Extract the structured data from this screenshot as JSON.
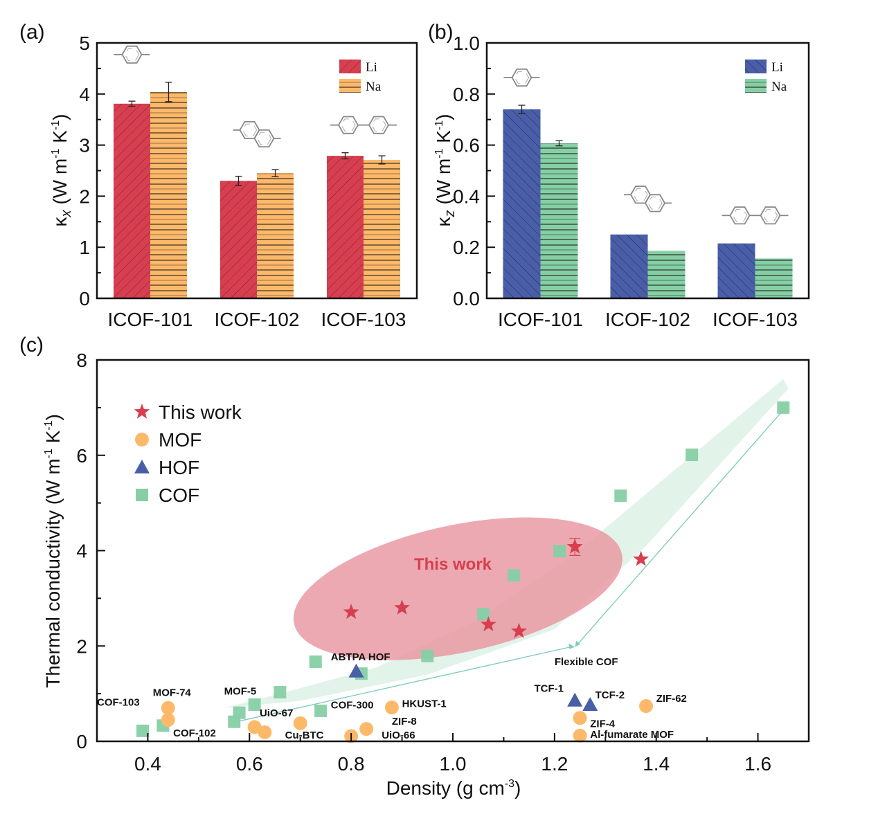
{
  "chart_data": [
    {
      "id": "a",
      "panel_label": "(a)",
      "type": "bar",
      "categories": [
        "ICOF-101",
        "ICOF-102",
        "ICOF-103"
      ],
      "series": [
        {
          "name": "Li",
          "color": "#d63f4f",
          "hatch": "diagonal",
          "values": [
            3.81,
            2.3,
            2.79
          ],
          "errors": [
            0.05,
            0.09,
            0.06
          ]
        },
        {
          "name": "Na",
          "color": "#fdb96a",
          "hatch": "horizontal",
          "values": [
            4.04,
            2.45,
            2.71
          ],
          "errors": [
            0.19,
            0.07,
            0.08
          ]
        }
      ],
      "ylabel": "κx (W m-1 K-1)",
      "ylabel_parts": {
        "kappa": "κ",
        "sub": "x",
        "unit": " (W m",
        "exp1": "-1",
        "mid": " K",
        "exp2": "-1",
        "close": ")"
      },
      "ylim": [
        0,
        5
      ],
      "yticks": [
        "0",
        "1",
        "2",
        "3",
        "4",
        "5"
      ],
      "ytick_values": [
        0,
        1,
        2,
        3,
        4,
        5
      ],
      "legend": [
        "Li",
        "Na"
      ],
      "legend_position": "top-right",
      "linker_icons": [
        "phenylene",
        "naphthalene",
        "biphenyl"
      ]
    },
    {
      "id": "b",
      "panel_label": "(b)",
      "type": "bar",
      "categories": [
        "ICOF-101",
        "ICOF-102",
        "ICOF-103"
      ],
      "series": [
        {
          "name": "Li",
          "color": "#4a5ea8",
          "hatch": "back-diagonal",
          "values": [
            0.74,
            0.25,
            0.215
          ],
          "errors": [
            0.016,
            0.001,
            0.001
          ]
        },
        {
          "name": "Na",
          "color": "#86cfa5",
          "hatch": "horizontal",
          "values": [
            0.607,
            0.186,
            0.156
          ],
          "errors": [
            0.01,
            0.001,
            0.002
          ]
        }
      ],
      "ylabel": "κz (W m-1 K-1)",
      "ylabel_parts": {
        "kappa": "κ",
        "sub": "z",
        "unit": " (W m",
        "exp1": "-1",
        "mid": " K",
        "exp2": "-1",
        "close": ")"
      },
      "ylim": [
        0,
        1.0
      ],
      "yticks": [
        "0.0",
        "0.2",
        "0.4",
        "0.6",
        "0.8",
        "1.0"
      ],
      "ytick_values": [
        0,
        0.2,
        0.4,
        0.6,
        0.8,
        1.0
      ],
      "legend": [
        "Li",
        "Na"
      ],
      "legend_position": "top-right",
      "linker_icons": [
        "phenylene",
        "naphthalene",
        "biphenyl"
      ]
    },
    {
      "id": "c",
      "panel_label": "(c)",
      "type": "scatter",
      "xlabel": "Density (g cm-3)",
      "xlabel_parts": {
        "main": "Density (g cm",
        "exp": "-3",
        "close": ")"
      },
      "ylabel": "Thermal conductivity (W m-1 K-1)",
      "ylabel_parts": {
        "main": "Thermal conductivity (W m",
        "exp1": "-1",
        "mid": " K",
        "exp2": "-1",
        "close": ")"
      },
      "xlim": [
        0.3,
        1.7
      ],
      "ylim": [
        0,
        8
      ],
      "xticks": [
        "0.4",
        "0.6",
        "0.8",
        "1.0",
        "1.2",
        "1.4",
        "1.6"
      ],
      "xtick_values": [
        0.4,
        0.6,
        0.8,
        1.0,
        1.2,
        1.4,
        1.6
      ],
      "yticks": [
        "0",
        "2",
        "4",
        "6",
        "8"
      ],
      "ytick_values": [
        0,
        2,
        4,
        6,
        8
      ],
      "legend_position": "top-left",
      "series": [
        {
          "name": "This work",
          "marker": "star",
          "color": "#d63f4f",
          "points": [
            [
              0.8,
              2.71
            ],
            [
              0.9,
              2.8
            ],
            [
              1.07,
              2.45
            ],
            [
              1.13,
              2.31
            ],
            [
              1.24,
              4.08
            ],
            [
              1.37,
              3.82
            ]
          ]
        },
        {
          "name": "MOF",
          "marker": "circle",
          "color": "#fdb96a",
          "points": [
            [
              0.44,
              0.7
            ],
            [
              0.44,
              0.45
            ],
            [
              0.61,
              0.3
            ],
            [
              0.63,
              0.19
            ],
            [
              0.7,
              0.38
            ],
            [
              0.8,
              0.11
            ],
            [
              0.83,
              0.26
            ],
            [
              0.88,
              0.71
            ],
            [
              1.25,
              0.49
            ],
            [
              1.25,
              0.12
            ],
            [
              1.38,
              0.74
            ]
          ]
        },
        {
          "name": "HOF",
          "marker": "triangle",
          "color": "#4a5ea8",
          "points": [
            [
              0.81,
              1.47
            ],
            [
              1.24,
              0.86
            ],
            [
              1.27,
              0.77
            ]
          ]
        },
        {
          "name": "COF",
          "marker": "square",
          "color": "#86cfa5",
          "points": [
            [
              0.39,
              0.22
            ],
            [
              0.43,
              0.33
            ],
            [
              0.57,
              0.41
            ],
            [
              0.58,
              0.6
            ],
            [
              0.61,
              0.77
            ],
            [
              0.66,
              1.03
            ],
            [
              0.73,
              1.67
            ],
            [
              0.74,
              0.64
            ],
            [
              0.82,
              1.42
            ],
            [
              0.95,
              1.79
            ],
            [
              1.06,
              2.67
            ],
            [
              1.12,
              3.48
            ],
            [
              1.21,
              3.99
            ],
            [
              1.33,
              5.15
            ],
            [
              1.47,
              6.01
            ],
            [
              1.65,
              7.0
            ]
          ]
        }
      ],
      "annotations": [
        {
          "text": "COF-103",
          "x": 0.3,
          "y": 0.75
        },
        {
          "text": "MOF-74",
          "x": 0.41,
          "y": 0.95
        },
        {
          "text": "COF-102",
          "x": 0.45,
          "y": 0.1
        },
        {
          "text": "MOF-5",
          "x": 0.55,
          "y": 0.98
        },
        {
          "text": "UiO-67",
          "x": 0.62,
          "y": 0.52
        },
        {
          "text": "COF-300",
          "x": 0.76,
          "y": 0.69
        },
        {
          "text": "HKUST-1",
          "x": 0.9,
          "y": 0.72
        },
        {
          "text": "ZIF-8",
          "x": 0.88,
          "y": 0.35
        },
        {
          "text": "Cu-BTC",
          "x": 0.67,
          "y": 0.06
        },
        {
          "text": "UiO-66",
          "x": 0.86,
          "y": 0.06
        },
        {
          "text": "ABTPA HOF",
          "x": 0.76,
          "y": 1.7
        },
        {
          "text": "Flexible COF",
          "x": 1.2,
          "y": 1.6
        },
        {
          "text": "TCF-1",
          "x": 1.16,
          "y": 1.04
        },
        {
          "text": "TCF-2",
          "x": 1.28,
          "y": 0.9
        },
        {
          "text": "ZIF-62",
          "x": 1.4,
          "y": 0.83
        },
        {
          "text": "ZIF-4",
          "x": 1.27,
          "y": 0.3
        },
        {
          "text": "Al-fumarate MOF",
          "x": 1.27,
          "y": 0.07
        }
      ],
      "highlight_region": {
        "label": "This work",
        "center": [
          1.01,
          3.2
        ],
        "color": "#e8919c"
      },
      "trend_band_color": "#d6eedf",
      "arrow_color": "#7fcdbb"
    }
  ]
}
